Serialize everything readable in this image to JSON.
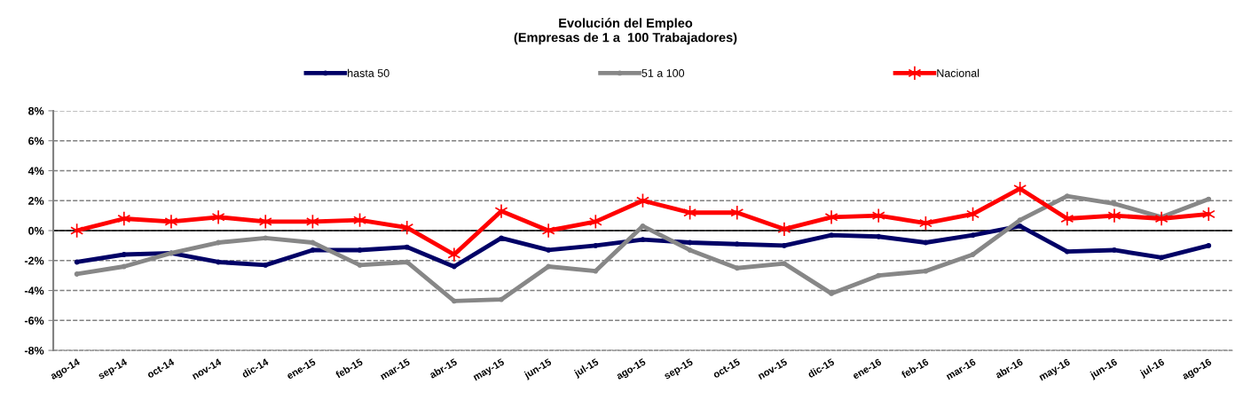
{
  "chart_data": {
    "type": "line",
    "title": "Evolución del Empleo\n(Empresas de 1 a  100 Trabajadores)",
    "categories": [
      "ago-14",
      "sep-14",
      "oct-14",
      "nov-14",
      "dic-14",
      "ene-15",
      "feb-15",
      "mar-15",
      "abr-15",
      "may-15",
      "jun-15",
      "jul-15",
      "ago-15",
      "sep-15",
      "oct-15",
      "nov-15",
      "dic-15",
      "ene-16",
      "feb-16",
      "mar-16",
      "abr-16",
      "may-16",
      "jun-16",
      "jul-16",
      "ago-16"
    ],
    "series": [
      {
        "name": "hasta 50",
        "color": "#000066",
        "marker": "circle",
        "values": [
          -2.1,
          -1.6,
          -1.5,
          -2.1,
          -2.3,
          -1.3,
          -1.3,
          -1.1,
          -2.4,
          -0.5,
          -1.3,
          -1.0,
          -0.6,
          -0.8,
          -0.9,
          -1.0,
          -0.3,
          -0.4,
          -0.8,
          -0.3,
          0.3,
          -1.4,
          -1.3,
          -1.8,
          -1.0
        ]
      },
      {
        "name": "51 a 100",
        "color": "#878787",
        "marker": "circle",
        "values": [
          -2.9,
          -2.4,
          -1.5,
          -0.8,
          -0.5,
          -0.8,
          -2.3,
          -2.1,
          -4.7,
          -4.6,
          -2.4,
          -2.7,
          0.3,
          -1.3,
          -2.5,
          -2.2,
          -4.2,
          -3.0,
          -2.7,
          -1.6,
          0.7,
          2.3,
          1.8,
          0.9,
          2.1
        ]
      },
      {
        "name": "Nacional",
        "color": "#ff0000",
        "marker": "cross",
        "values": [
          0.0,
          0.8,
          0.6,
          0.9,
          0.6,
          0.6,
          0.7,
          0.2,
          -1.6,
          1.3,
          0.0,
          0.6,
          2.0,
          1.2,
          1.2,
          0.1,
          0.9,
          1.0,
          0.5,
          1.1,
          2.8,
          0.8,
          1.0,
          0.8,
          1.1
        ]
      }
    ],
    "ylim": [
      -8,
      8
    ],
    "yticks": [
      {
        "value": -8,
        "label": "-8%"
      },
      {
        "value": -6,
        "label": "-6%"
      },
      {
        "value": -4,
        "label": "-4%"
      },
      {
        "value": -2,
        "label": "-2%"
      },
      {
        "value": 0,
        "label": "0%"
      },
      {
        "value": 2,
        "label": "2%"
      },
      {
        "value": 4,
        "label": "4%"
      },
      {
        "value": 6,
        "label": "6%"
      },
      {
        "value": 8,
        "label": "8%"
      }
    ],
    "ref_lines": [
      {
        "axis": "y",
        "value": 0,
        "color": "#000000",
        "line_style": "solid"
      }
    ],
    "grid": "y",
    "legend": "top",
    "line_style": "solid"
  }
}
